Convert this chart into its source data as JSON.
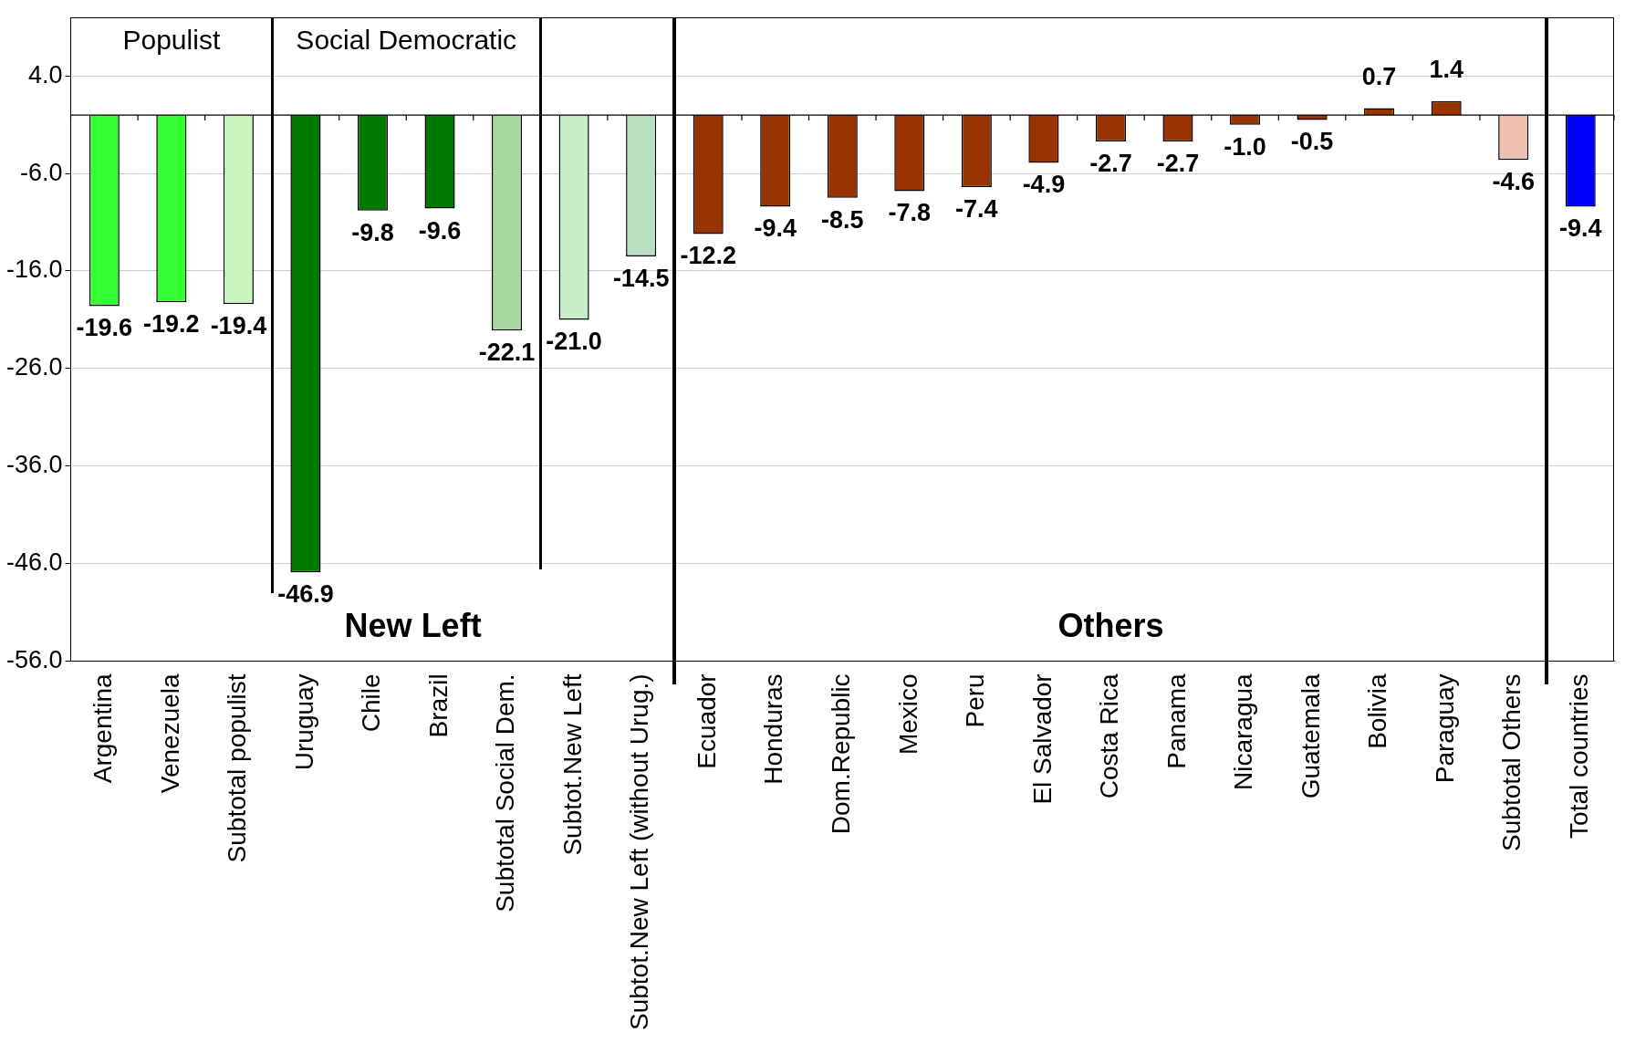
{
  "chart_data": {
    "type": "bar",
    "categories": [
      "Argentina",
      "Venezuela",
      "Subtotal populist",
      "Uruguay",
      "Chile",
      "Brazil",
      "Subtotal Social Dem.",
      "Subtot.New Left",
      "Subtot.New Left (without Urug.)",
      "Ecuador",
      "Honduras",
      "Dom.Republic",
      "Mexico",
      "Peru",
      "El Salvador",
      "Costa Rica",
      "Panama",
      "Nicaragua",
      "Guatemala",
      "Bolivia",
      "Paraguay",
      "Subtotal Others",
      "Total countries"
    ],
    "values": [
      -19.6,
      -19.2,
      -19.4,
      -46.9,
      -9.8,
      -9.6,
      -22.1,
      -21.0,
      -14.5,
      -12.2,
      -9.4,
      -8.5,
      -7.8,
      -7.4,
      -4.9,
      -2.7,
      -2.7,
      -1.0,
      -0.5,
      0.7,
      1.4,
      -4.6,
      -9.4
    ],
    "colors": [
      "#33ff33",
      "#33ff33",
      "#c8f5c0",
      "#007a00",
      "#007a00",
      "#007a00",
      "#a8d8a0",
      "#c8ecc8",
      "#b8e0c0",
      "#993300",
      "#993300",
      "#993300",
      "#993300",
      "#993300",
      "#993300",
      "#993300",
      "#993300",
      "#993300",
      "#993300",
      "#993300",
      "#993300",
      "#f0c0b0",
      "#0000ff"
    ],
    "value_labels": [
      "-19.6",
      "-19.2",
      "-19.4",
      "-46.9",
      "-9.8",
      "-9.6",
      "-22.1",
      "-21.0",
      "-14.5",
      "-12.2",
      "-9.4",
      "-8.5",
      "-7.8",
      "-7.4",
      "-4.9",
      "-2.7",
      "-2.7",
      "-1.0",
      "-0.5",
      "0.7",
      "1.4",
      "-4.6",
      "-9.4"
    ],
    "ylim": [
      -56,
      10
    ],
    "yticks": [
      {
        "value": 4,
        "label": "4.0"
      },
      {
        "value": -6,
        "label": "-6.0"
      },
      {
        "value": -16,
        "label": "-16.0"
      },
      {
        "value": -26,
        "label": "-26.0"
      },
      {
        "value": -36,
        "label": "-36.0"
      },
      {
        "value": -46,
        "label": "-46.0"
      },
      {
        "value": -56,
        "label": "-56.0"
      }
    ],
    "grid": "y",
    "annotations": [
      "Populist",
      "Social Democratic",
      "New Left",
      "Others"
    ]
  }
}
